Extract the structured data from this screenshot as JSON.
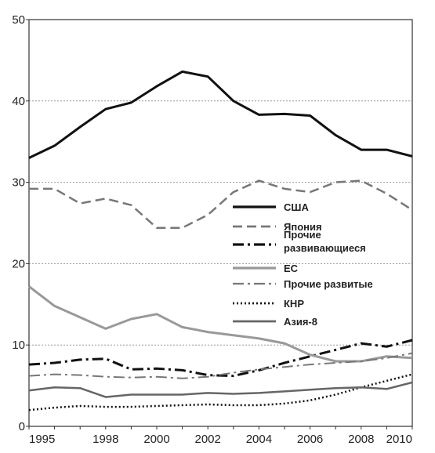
{
  "chart_data": {
    "type": "line",
    "title": "",
    "xlabel": "",
    "ylabel": "",
    "xlim": [
      1995,
      2010
    ],
    "ylim": [
      0,
      50
    ],
    "x_ticks": [
      1995,
      1998,
      2000,
      2002,
      2004,
      2006,
      2008,
      2010
    ],
    "y_ticks": [
      0,
      10,
      20,
      30,
      40,
      50
    ],
    "grid": "horizontal dotted at 10, 20, 30, 40",
    "legend_position": "center-right",
    "x": [
      1995,
      1996,
      1997,
      1998,
      1999,
      2000,
      2001,
      2002,
      2003,
      2004,
      2005,
      2006,
      2007,
      2008,
      2009,
      2010
    ],
    "series": [
      {
        "name": "США",
        "style": "solid",
        "color": "#111111",
        "width": 3,
        "values": [
          33.0,
          34.5,
          36.8,
          39.0,
          39.8,
          41.8,
          43.6,
          43.0,
          40.0,
          38.3,
          38.4,
          38.2,
          35.8,
          34.0,
          34.0,
          33.2
        ]
      },
      {
        "name": "Япония",
        "style": "dashed",
        "color": "#777777",
        "width": 2.5,
        "values": [
          29.2,
          29.2,
          27.4,
          28.0,
          27.2,
          24.4,
          24.4,
          26.0,
          28.8,
          30.2,
          29.2,
          28.8,
          30.0,
          30.2,
          28.6,
          26.6
        ]
      },
      {
        "name": "Прочие развивающиеся",
        "label_lines": [
          "Прочие",
          "развивающиеся"
        ],
        "style": "dashdot",
        "color": "#111111",
        "width": 3,
        "values": [
          7.6,
          7.8,
          8.2,
          8.3,
          7.0,
          7.1,
          6.9,
          6.3,
          6.2,
          6.9,
          7.8,
          8.6,
          9.4,
          10.2,
          9.8,
          10.6
        ]
      },
      {
        "name": "ЕС",
        "style": "solid",
        "color": "#999999",
        "width": 3,
        "values": [
          17.2,
          14.8,
          13.4,
          12.0,
          13.2,
          13.8,
          12.2,
          11.6,
          11.2,
          10.8,
          10.2,
          8.8,
          8.0,
          8.0,
          8.6,
          8.4
        ]
      },
      {
        "name": "Прочие развитые",
        "style": "dashdot",
        "color": "#777777",
        "width": 2,
        "values": [
          6.2,
          6.4,
          6.3,
          6.1,
          6.0,
          6.1,
          5.9,
          6.1,
          6.6,
          7.0,
          7.3,
          7.6,
          7.8,
          8.0,
          8.4,
          9.0
        ]
      },
      {
        "name": "КНР",
        "style": "dotted",
        "color": "#111111",
        "width": 2.5,
        "values": [
          2.0,
          2.3,
          2.5,
          2.4,
          2.4,
          2.5,
          2.6,
          2.7,
          2.6,
          2.6,
          2.8,
          3.2,
          3.9,
          4.8,
          5.6,
          6.4
        ]
      },
      {
        "name": "Азия-8",
        "style": "solid",
        "color": "#666666",
        "width": 2.5,
        "values": [
          4.4,
          4.8,
          4.7,
          3.6,
          3.9,
          3.9,
          3.9,
          4.1,
          4.0,
          4.1,
          4.3,
          4.5,
          4.7,
          4.8,
          4.6,
          5.4
        ]
      }
    ]
  }
}
